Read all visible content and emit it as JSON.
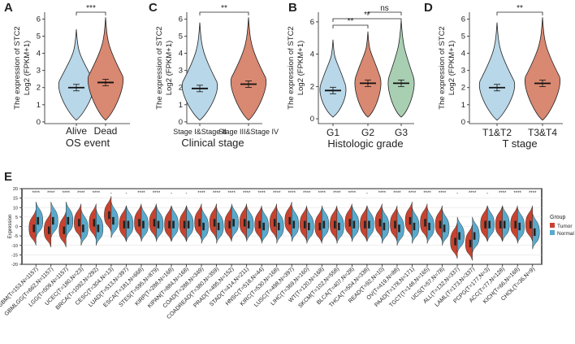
{
  "colors": {
    "blue": "#b8d7e8",
    "red": "#d98871",
    "green": "#a9cfb3",
    "tumor": "#c8432f",
    "normal": "#59a9cc"
  },
  "panels": [
    {
      "label": "A",
      "ylabel1": "The expression of STC2",
      "ylabel2": "Log2 (FPKM+1)",
      "yticks": [
        "0",
        "1",
        "2",
        "3",
        "4",
        "5",
        "6"
      ],
      "categories": [
        "Alive",
        "Dead"
      ],
      "colors": [
        "blue",
        "red"
      ],
      "medians": [
        2.0,
        2.3
      ],
      "tops": [
        5.4,
        6.1
      ],
      "brackets": [
        {
          "from": 0,
          "to": 1,
          "label": "***"
        }
      ],
      "xtitle": "OS event"
    },
    {
      "label": "C",
      "ylabel1": "The expression of STC2",
      "ylabel2": "Log2 (FPKM+1)",
      "yticks": [
        "0",
        "1",
        "2",
        "3",
        "4",
        "5",
        "6"
      ],
      "categories": [
        "Stage I&Stage II",
        "Stage III&Stage IV"
      ],
      "colors": [
        "blue",
        "red"
      ],
      "medians": [
        1.95,
        2.2
      ],
      "tops": [
        5.8,
        6.1
      ],
      "brackets": [
        {
          "from": 0,
          "to": 1,
          "label": "**"
        }
      ],
      "xtitle": "Clinical stage"
    },
    {
      "label": "B",
      "ylabel1": "The expression of STC2",
      "ylabel2": "Log2 (FPKM+1)",
      "yticks": [
        "0",
        "2",
        "4",
        "6"
      ],
      "categories": [
        "G1",
        "G2",
        "G3"
      ],
      "colors": [
        "blue",
        "red",
        "green"
      ],
      "medians": [
        1.75,
        2.2,
        2.2
      ],
      "tops": [
        4.9,
        5.4,
        6.1
      ],
      "brackets": [
        {
          "from": 0,
          "to": 1,
          "label": "**"
        },
        {
          "from": 0,
          "to": 2,
          "label": "**"
        },
        {
          "from": 1,
          "to": 2,
          "label": "ns"
        }
      ],
      "xtitle": "Histologic grade"
    },
    {
      "label": "D",
      "ylabel1": "The expression of STC2",
      "ylabel2": "Log2 (FPKM+1)",
      "yticks": [
        "0",
        "1",
        "2",
        "3",
        "4",
        "5",
        "6"
      ],
      "categories": [
        "T1&T2",
        "T3&T4"
      ],
      "colors": [
        "blue",
        "red"
      ],
      "medians": [
        2.0,
        2.25
      ],
      "tops": [
        5.8,
        6.1
      ],
      "brackets": [
        {
          "from": 0,
          "to": 1,
          "label": "**"
        }
      ],
      "xtitle": "T stage"
    }
  ],
  "chart_data": {
    "type": "split-violin",
    "label": "E",
    "ylabel": "Expression",
    "yticks": [
      "20",
      "15",
      "10",
      "5",
      "0",
      "-5",
      "-10",
      "-15",
      "-20"
    ],
    "ylim": [
      -20,
      20
    ],
    "legend": {
      "title": "Group",
      "tumor": "Tumor",
      "normal": "Normal"
    },
    "categories": [
      {
        "name": "GBM(T=153,N=1157)",
        "sig": "****",
        "t": -1,
        "n": 3
      },
      {
        "name": "GBMLGG(T=662,N=1157)",
        "sig": "****",
        "t": -2,
        "n": 3
      },
      {
        "name": "LGG(T=509,N=1157)",
        "sig": "****",
        "t": -2,
        "n": 3
      },
      {
        "name": "UCEC(T=180,N=23)",
        "sig": "****",
        "t": 2,
        "n": -1
      },
      {
        "name": "BRCA(T=1092,N=292)",
        "sig": "****",
        "t": 2,
        "n": -1
      },
      {
        "name": "CESC(T=304,N=13)",
        "sig": "-",
        "t": 6,
        "n": 3
      },
      {
        "name": "LUAD(T=513,N=397)",
        "sig": "-",
        "t": 1,
        "n": 1
      },
      {
        "name": "ESCA(T=181,N=668)",
        "sig": "****",
        "t": 2,
        "n": 1
      },
      {
        "name": "STES(T=595,N=879)",
        "sig": "****",
        "t": 2,
        "n": 1
      },
      {
        "name": "KIRP(T=288,N=168)",
        "sig": "-",
        "t": 1,
        "n": 1
      },
      {
        "name": "KIPAN(T=884,N=168)",
        "sig": "-",
        "t": 1,
        "n": 1
      },
      {
        "name": "COAD(T=288,N=349)",
        "sig": "****",
        "t": 2,
        "n": 0
      },
      {
        "name": "COADREAD(T=380,N=359)",
        "sig": "****",
        "t": 2,
        "n": 0
      },
      {
        "name": "PRAD(T=495,N=152)",
        "sig": "****",
        "t": 1,
        "n": 2
      },
      {
        "name": "STAD(T=414,N=211)",
        "sig": "****",
        "t": 2,
        "n": 1
      },
      {
        "name": "HNSC(T=518,N=44)",
        "sig": "****",
        "t": 1,
        "n": 0
      },
      {
        "name": "KIRC(T=530,N=168)",
        "sig": "****",
        "t": 2,
        "n": 0
      },
      {
        "name": "LUSC(T=498,N=397)",
        "sig": "****",
        "t": 3,
        "n": 1
      },
      {
        "name": "LIHC(T=369,N=160)",
        "sig": "****",
        "t": 1,
        "n": 0
      },
      {
        "name": "WT(T=120,N=168)",
        "sig": "****",
        "t": 0,
        "n": 1
      },
      {
        "name": "SKCM(T=102,N=558)",
        "sig": "****",
        "t": 1,
        "n": 0
      },
      {
        "name": "BLCA(T=407,N=28)",
        "sig": "****",
        "t": 2,
        "n": 1
      },
      {
        "name": "THCA(T=504,N=338)",
        "sig": "-",
        "t": 1,
        "n": 1
      },
      {
        "name": "READ(T=92,N=10)",
        "sig": "****",
        "t": 2,
        "n": 0
      },
      {
        "name": "OV(T=419,N=88)",
        "sig": "****",
        "t": 1,
        "n": -1
      },
      {
        "name": "PAAD(T=178,N=171)",
        "sig": "****",
        "t": 3,
        "n": 0
      },
      {
        "name": "TGCT(T=148,N=165)",
        "sig": "****",
        "t": 2,
        "n": 0
      },
      {
        "name": "UCS(T=57,N=78)",
        "sig": "****",
        "t": 1,
        "n": -1
      },
      {
        "name": "ALL(T=132,N=337)",
        "sig": "-",
        "t": -8,
        "n": -5
      },
      {
        "name": "LAML(T=173,N=337)",
        "sig": "****",
        "t": -9,
        "n": -5
      },
      {
        "name": "PCPG(T=177,N=3)",
        "sig": "-",
        "t": 1,
        "n": 1
      },
      {
        "name": "ACC(T=77,N=128)",
        "sig": "****",
        "t": 1,
        "n": 1
      },
      {
        "name": "KICH(T=66,N=168)",
        "sig": "****",
        "t": 1,
        "n": 0
      },
      {
        "name": "CHOL(T=36,N=9)",
        "sig": "****",
        "t": 1,
        "n": -3
      }
    ]
  }
}
